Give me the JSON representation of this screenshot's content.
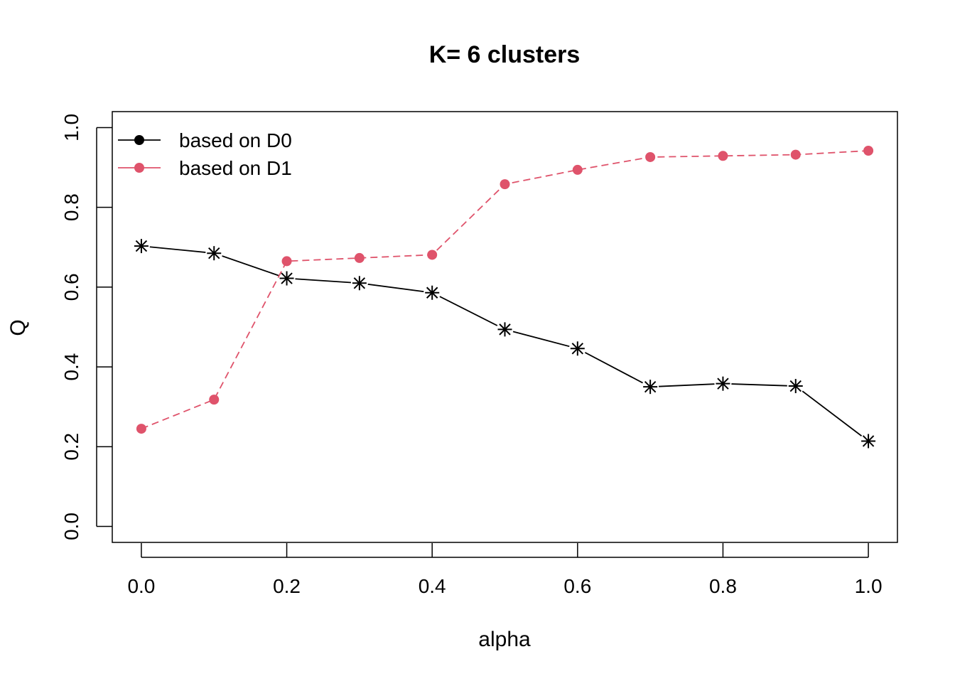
{
  "chart_data": {
    "type": "line",
    "title": "K= 6 clusters",
    "xlabel": "alpha",
    "ylabel": "Q",
    "xlim": [
      -0.04,
      1.04
    ],
    "ylim": [
      -0.04,
      1.04
    ],
    "x_ticks": [
      0.0,
      0.2,
      0.4,
      0.6,
      0.8,
      1.0
    ],
    "y_ticks": [
      0.0,
      0.2,
      0.4,
      0.6,
      0.8,
      1.0
    ],
    "x_tick_labels": [
      "0.0",
      "0.2",
      "0.4",
      "0.6",
      "0.8",
      "1.0"
    ],
    "y_tick_labels": [
      "0.0",
      "0.2",
      "0.4",
      "0.6",
      "0.8",
      "1.0"
    ],
    "grid": false,
    "legend_position": "top-left",
    "x": [
      0.0,
      0.1,
      0.2,
      0.3,
      0.4,
      0.5,
      0.6,
      0.7,
      0.8,
      0.9,
      1.0
    ],
    "series": [
      {
        "name": "based on D0",
        "color": "#000000",
        "line_style": "solid",
        "marker": "asterisk",
        "legend_marker": "filled-circle",
        "values": [
          0.703,
          0.685,
          0.622,
          0.61,
          0.586,
          0.494,
          0.446,
          0.35,
          0.358,
          0.352,
          0.214
        ]
      },
      {
        "name": "based on D1",
        "color": "#DF536B",
        "line_style": "dashed",
        "marker": "filled-circle",
        "legend_marker": "filled-circle",
        "values": [
          0.245,
          0.318,
          0.665,
          0.673,
          0.681,
          0.858,
          0.894,
          0.926,
          0.929,
          0.932,
          0.942
        ]
      }
    ]
  }
}
